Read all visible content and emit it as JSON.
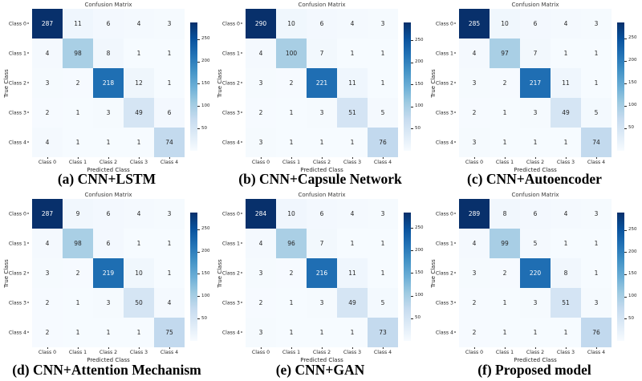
{
  "figure": {
    "background": "#ffffff",
    "colormap_name": "Blues",
    "colormap": [
      "#f7fbff",
      "#deebf7",
      "#c6dbef",
      "#9ecae1",
      "#6baed6",
      "#4292c6",
      "#2171b5",
      "#08519c",
      "#08306b"
    ],
    "text_color": "#262626",
    "caption_color": "#000000"
  },
  "chart_data": [
    {
      "type": "heatmap",
      "title": "Confusion Matrix",
      "caption": "(a) CNN+LSTM",
      "xlabel": "Predicted Class",
      "ylabel": "True Class",
      "x_categories": [
        "Class 0",
        "Class 1",
        "Class 2",
        "Class 3",
        "Class 4"
      ],
      "y_categories": [
        "Class 0",
        "Class 1",
        "Class 2",
        "Class 3",
        "Class 4"
      ],
      "values": [
        [
          287,
          11,
          6,
          4,
          3
        ],
        [
          4,
          98,
          8,
          1,
          1
        ],
        [
          3,
          2,
          218,
          12,
          1
        ],
        [
          2,
          1,
          3,
          49,
          6
        ],
        [
          4,
          1,
          1,
          1,
          74
        ]
      ],
      "colorbar_ticks": [
        50,
        100,
        150,
        200,
        250
      ],
      "vmin": 0
    },
    {
      "type": "heatmap",
      "title": "Confusion Matrix",
      "caption": "(b) CNN+Capsule Network",
      "xlabel": "Predicted Class",
      "ylabel": "True Class",
      "x_categories": [
        "Class 0",
        "Class 1",
        "Class 2",
        "Class 3",
        "Class 4"
      ],
      "y_categories": [
        "Class 0",
        "Class 1",
        "Class 2",
        "Class 3",
        "Class 4"
      ],
      "values": [
        [
          290,
          10,
          6,
          4,
          3
        ],
        [
          4,
          100,
          7,
          1,
          1
        ],
        [
          3,
          2,
          221,
          11,
          1
        ],
        [
          2,
          1,
          3,
          51,
          5
        ],
        [
          3,
          1,
          1,
          1,
          76
        ]
      ],
      "colorbar_ticks": [
        50,
        100,
        150,
        200,
        250
      ],
      "vmin": 0
    },
    {
      "type": "heatmap",
      "title": "Confusion Matrix",
      "caption": "(c) CNN+Autoencoder",
      "xlabel": "Predicted Class",
      "ylabel": "True Class",
      "x_categories": [
        "Class 0",
        "Class 1",
        "Class 2",
        "Class 3",
        "Class 4"
      ],
      "y_categories": [
        "Class 0",
        "Class 1",
        "Class 2",
        "Class 3",
        "Class 4"
      ],
      "values": [
        [
          285,
          10,
          6,
          4,
          3
        ],
        [
          4,
          97,
          7,
          1,
          1
        ],
        [
          3,
          2,
          217,
          11,
          1
        ],
        [
          2,
          1,
          3,
          49,
          5
        ],
        [
          3,
          1,
          1,
          1,
          74
        ]
      ],
      "colorbar_ticks": [
        50,
        100,
        150,
        200,
        250
      ],
      "vmin": 0
    },
    {
      "type": "heatmap",
      "title": "Confusion Matrix",
      "caption": "(d) CNN+Attention Mechanism",
      "xlabel": "Predicted Class",
      "ylabel": "True Class",
      "x_categories": [
        "Class 0",
        "Class 1",
        "Class 2",
        "Class 3",
        "Class 4"
      ],
      "y_categories": [
        "Class 0",
        "Class 1",
        "Class 2",
        "Class 3",
        "Class 4"
      ],
      "values": [
        [
          287,
          9,
          6,
          4,
          3
        ],
        [
          4,
          98,
          6,
          1,
          1
        ],
        [
          3,
          2,
          219,
          10,
          1
        ],
        [
          2,
          1,
          3,
          50,
          4
        ],
        [
          2,
          1,
          1,
          1,
          75
        ]
      ],
      "colorbar_ticks": [
        50,
        100,
        150,
        200,
        250
      ],
      "vmin": 0
    },
    {
      "type": "heatmap",
      "title": "Confusion Matrix",
      "caption": "(e) CNN+GAN",
      "xlabel": "Predicted Class",
      "ylabel": "True Class",
      "x_categories": [
        "Class 0",
        "Class 1",
        "Class 2",
        "Class 3",
        "Class 4"
      ],
      "y_categories": [
        "Class 0",
        "Class 1",
        "Class 2",
        "Class 3",
        "Class 4"
      ],
      "values": [
        [
          284,
          10,
          6,
          4,
          3
        ],
        [
          4,
          96,
          7,
          1,
          1
        ],
        [
          3,
          2,
          216,
          11,
          1
        ],
        [
          2,
          1,
          3,
          49,
          5
        ],
        [
          3,
          1,
          1,
          1,
          73
        ]
      ],
      "colorbar_ticks": [
        50,
        100,
        150,
        200,
        250
      ],
      "vmin": 0
    },
    {
      "type": "heatmap",
      "title": "Confusion Matrix",
      "caption": "(f) Proposed model",
      "xlabel": "Predicted Class",
      "ylabel": "True Class",
      "x_categories": [
        "Class 0",
        "Class 1",
        "Class 2",
        "Class 3",
        "Class 4"
      ],
      "y_categories": [
        "Class 0",
        "Class 1",
        "Class 2",
        "Class 3",
        "Class 4"
      ],
      "values": [
        [
          289,
          8,
          6,
          4,
          3
        ],
        [
          4,
          99,
          5,
          1,
          1
        ],
        [
          3,
          2,
          220,
          8,
          1
        ],
        [
          2,
          1,
          3,
          51,
          3
        ],
        [
          2,
          1,
          1,
          1,
          76
        ]
      ],
      "colorbar_ticks": [
        50,
        100,
        150,
        200,
        250
      ],
      "vmin": 0
    }
  ]
}
